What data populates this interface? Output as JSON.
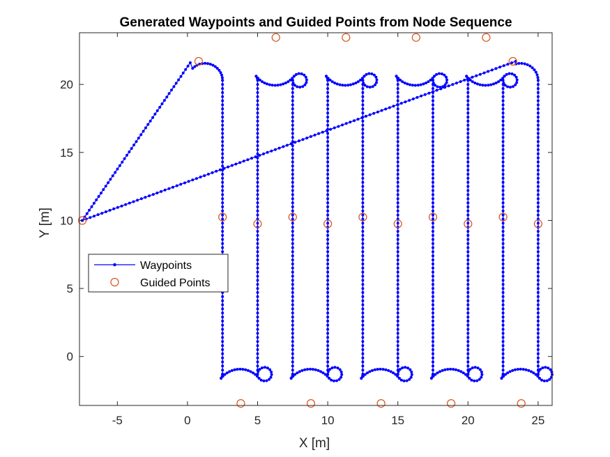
{
  "chart_data": {
    "type": "line",
    "title": "Generated Waypoints and Guided Points from Node Sequence",
    "xlabel": "X [m]",
    "ylabel": "Y [m]",
    "xlim": [
      -7.7,
      26
    ],
    "ylim": [
      -3.6,
      23.8
    ],
    "xticks": [
      -5,
      0,
      5,
      10,
      15,
      20,
      25
    ],
    "yticks": [
      0,
      5,
      10,
      15,
      20
    ],
    "grid": false,
    "legend_position": "middle-left",
    "series": [
      {
        "name": "Waypoints",
        "style": "line-with-dot-markers",
        "color": "#0000ff",
        "segments": [
          {
            "kind": "line",
            "x": [
              -7.5,
              0.2
            ],
            "y": [
              10.0,
              21.6
            ]
          },
          {
            "kind": "arc",
            "center": [
              1.25,
              20.3
            ],
            "radius": 1.25,
            "from_deg": 135,
            "to_deg": 0
          },
          {
            "kind": "line",
            "x": [
              2.5,
              2.5
            ],
            "y": [
              20.3,
              -1.3
            ]
          },
          {
            "kind": "loop_bottom",
            "x_left": 2.5,
            "x_right": 5.0,
            "y": -1.3
          },
          {
            "kind": "line",
            "x": [
              5.0,
              5.0
            ],
            "y": [
              -1.3,
              20.3
            ]
          },
          {
            "kind": "loop_top",
            "x_left": 5.0,
            "x_right": 7.5,
            "y": 20.3
          },
          {
            "kind": "line",
            "x": [
              7.5,
              7.5
            ],
            "y": [
              20.3,
              -1.3
            ]
          },
          {
            "kind": "loop_bottom",
            "x_left": 7.5,
            "x_right": 10.0,
            "y": -1.3
          },
          {
            "kind": "line",
            "x": [
              10.0,
              10.0
            ],
            "y": [
              -1.3,
              20.3
            ]
          },
          {
            "kind": "loop_top",
            "x_left": 10.0,
            "x_right": 12.5,
            "y": 20.3
          },
          {
            "kind": "line",
            "x": [
              12.5,
              12.5
            ],
            "y": [
              20.3,
              -1.3
            ]
          },
          {
            "kind": "loop_bottom",
            "x_left": 12.5,
            "x_right": 15.0,
            "y": -1.3
          },
          {
            "kind": "line",
            "x": [
              15.0,
              15.0
            ],
            "y": [
              -1.3,
              20.3
            ]
          },
          {
            "kind": "loop_top",
            "x_left": 15.0,
            "x_right": 17.5,
            "y": 20.3
          },
          {
            "kind": "line",
            "x": [
              17.5,
              17.5
            ],
            "y": [
              20.3,
              -1.3
            ]
          },
          {
            "kind": "loop_bottom",
            "x_left": 17.5,
            "x_right": 20.0,
            "y": -1.3
          },
          {
            "kind": "line",
            "x": [
              20.0,
              20.0
            ],
            "y": [
              -1.3,
              20.3
            ]
          },
          {
            "kind": "loop_top",
            "x_left": 20.0,
            "x_right": 22.5,
            "y": 20.3
          },
          {
            "kind": "line",
            "x": [
              22.5,
              22.5
            ],
            "y": [
              20.3,
              -1.3
            ]
          },
          {
            "kind": "loop_bottom",
            "x_left": 22.5,
            "x_right": 25.0,
            "y": -1.3
          },
          {
            "kind": "line",
            "x": [
              25.0,
              25.0
            ],
            "y": [
              -1.3,
              20.3
            ]
          },
          {
            "kind": "arc",
            "center": [
              23.75,
              20.3
            ],
            "radius": 1.25,
            "from_deg": 0,
            "to_deg": 105
          },
          {
            "kind": "line",
            "x": [
              23.4,
              -7.5
            ],
            "y": [
              21.7,
              10.0
            ]
          }
        ]
      },
      {
        "name": "Guided Points",
        "style": "open-circle-markers",
        "color": "#d95319",
        "x": [
          -7.5,
          0.8,
          2.5,
          3.8,
          5.0,
          6.3,
          7.5,
          8.8,
          10.0,
          11.3,
          12.5,
          13.8,
          15.0,
          16.3,
          17.5,
          18.8,
          20.0,
          21.3,
          22.5,
          23.8,
          23.2,
          25.0
        ],
        "y": [
          10.0,
          21.7,
          10.25,
          -3.45,
          9.75,
          23.45,
          10.25,
          -3.45,
          9.75,
          23.45,
          10.25,
          -3.45,
          9.75,
          23.45,
          10.25,
          -3.45,
          9.75,
          23.45,
          10.25,
          -3.45,
          21.7,
          9.75
        ]
      }
    ]
  }
}
